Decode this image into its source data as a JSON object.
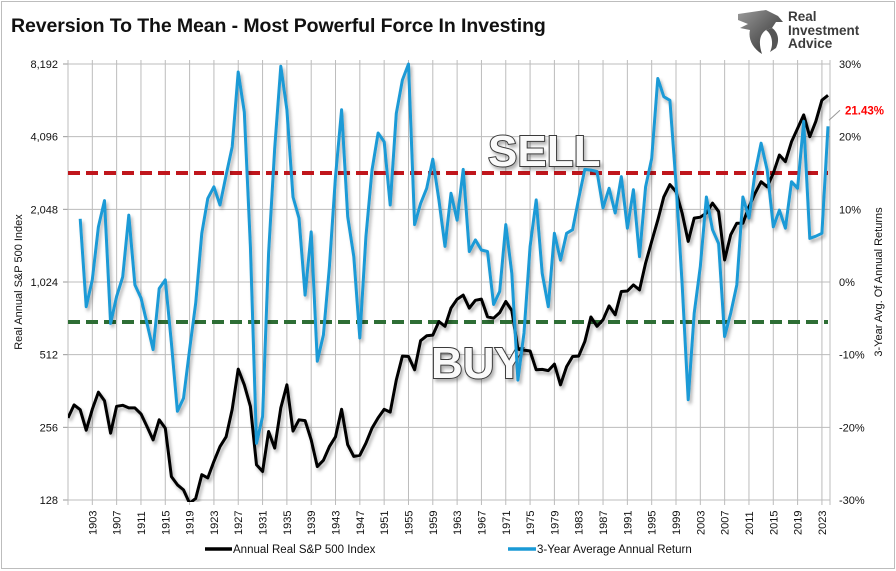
{
  "title": "Reversion To The Mean - Most Powerful Force In Investing",
  "logo": {
    "line1": "Real",
    "line2": "Investment",
    "line3": "Advice"
  },
  "chart_data": {
    "type": "line",
    "title": "Reversion To The Mean - Most Powerful Force In Investing",
    "ylabel_left": "Real Annual S&P 500 Index",
    "ylabel_right": "3-Year Avg. Of Annual Returns",
    "left_axis": {
      "scale": "log2",
      "range": [
        128,
        8192
      ],
      "tick_labels": [
        "128",
        "256",
        "512",
        "1,024",
        "2,048",
        "4,096",
        "8,192"
      ],
      "tick_values": [
        128,
        256,
        512,
        1024,
        2048,
        4096,
        8192
      ]
    },
    "right_axis": {
      "scale": "linear",
      "range": [
        -30,
        30
      ],
      "tick_labels": [
        "-30%",
        "-20%",
        "-10%",
        "0%",
        "10%",
        "20%",
        "30%"
      ],
      "tick_values": [
        -30,
        -20,
        -10,
        0,
        10,
        20,
        30
      ]
    },
    "x_axis": {
      "range": [
        1899,
        2024
      ],
      "tick_labels": [
        "1903",
        "1907",
        "1911",
        "1915",
        "1919",
        "1923",
        "1927",
        "1931",
        "1935",
        "1939",
        "1943",
        "1947",
        "1951",
        "1955",
        "1959",
        "1963",
        "1967",
        "1971",
        "1975",
        "1979",
        "1983",
        "1987",
        "1991",
        "1995",
        "1999",
        "2003",
        "2007",
        "2011",
        "2015",
        "2019",
        "2023"
      ]
    },
    "grid": true,
    "legend_placement": "bottom",
    "series": [
      {
        "name": "Annual Real S&P 500 Index",
        "axis": "left",
        "color": "#000000",
        "x_start": 1899,
        "values": [
          280,
          317,
          303,
          249,
          304,
          358,
          330,
          242,
          313,
          316,
          308,
          308,
          291,
          258,
          227,
          275,
          254,
          160,
          148,
          141,
          124,
          130,
          163,
          158,
          185,
          213,
          234,
          304,
          446,
          384,
          313,
          179,
          168,
          246,
          210,
          308,
          384,
          247,
          275,
          273,
          227,
          176,
          187,
          213,
          234,
          304,
          217,
          194,
          196,
          220,
          254,
          280,
          304,
          296,
          402,
          505,
          503,
          443,
          585,
          613,
          617,
          702,
          671,
          798,
          869,
          904,
          798,
          860,
          870,
          735,
          725,
          765,
          850,
          780,
          540,
          535,
          530,
          443,
          445,
          440,
          468,
          384,
          457,
          503,
          505,
          580,
          733,
          671,
          714,
          815,
          749,
          935,
          940,
          996,
          950,
          1226,
          1509,
          1848,
          2305,
          2592,
          2425,
          1978,
          1509,
          1884,
          1900,
          1978,
          2173,
          2006,
          1263,
          1606,
          1795,
          1795,
          2100,
          2385,
          2665,
          2540,
          2890,
          3440,
          3230,
          3900,
          4430,
          5040,
          4096,
          4740,
          5800,
          6080
        ]
      },
      {
        "name": "3-Year Average Annual Return",
        "axis": "right",
        "color": "#1a9ad6",
        "x_start": 1901,
        "values": [
          8.7,
          -3.4,
          0.3,
          7.6,
          11.2,
          -5.7,
          -2,
          0.7,
          9.2,
          -0.4,
          -2.2,
          -5.7,
          -9.3,
          -0.9,
          0.3,
          -8.4,
          -17.8,
          -16,
          -9.3,
          -2.9,
          6.7,
          11.5,
          13.1,
          10.6,
          14.7,
          18.6,
          28.9,
          23.4,
          4.9,
          -22.2,
          -18.5,
          4,
          18.4,
          29.7,
          23.7,
          11.7,
          8.8,
          -1.8,
          6.9,
          -10.9,
          -7.3,
          2.1,
          14.5,
          23.7,
          9,
          3.5,
          -7.7,
          6.2,
          15.4,
          20.5,
          19.3,
          10.6,
          23.2,
          27.8,
          30,
          7.9,
          10.8,
          12.9,
          16.9,
          11.3,
          4.9,
          12.2,
          8.5,
          15.5,
          4.2,
          5.8,
          4.4,
          4.2,
          -3.1,
          -1.3,
          7.9,
          1.2,
          -13.5,
          -7,
          4.9,
          11.3,
          1.2,
          -3.4,
          6.7,
          3,
          6.7,
          7.2,
          11.5,
          15.5,
          15.4,
          15.2,
          10.2,
          12.9,
          9.5,
          14.5,
          7.4,
          12.7,
          3.5,
          13.1,
          17,
          28,
          25.5,
          25,
          13.6,
          -0.2,
          -16.2,
          -4.3,
          2.1,
          11.7,
          7.2,
          5.3,
          -7.5,
          -4.3,
          -0.4,
          11.7,
          8.8,
          15,
          19.1,
          15.4,
          7.6,
          9.9,
          7.4,
          13.8,
          12.9,
          22.1,
          6,
          6.3,
          6.7,
          21.43
        ]
      }
    ],
    "reference_lines": [
      {
        "label": "SELL",
        "axis": "right",
        "value": 15,
        "color": "#c0161c",
        "style": "dashed"
      },
      {
        "label": "BUY",
        "axis": "right",
        "value": -5.5,
        "color": "#2e6e35",
        "style": "dashed"
      }
    ],
    "annotations": [
      {
        "text": "21.43%",
        "color": "#ff0000",
        "series": "3-Year Average Annual Return",
        "x": 2024
      }
    ]
  }
}
